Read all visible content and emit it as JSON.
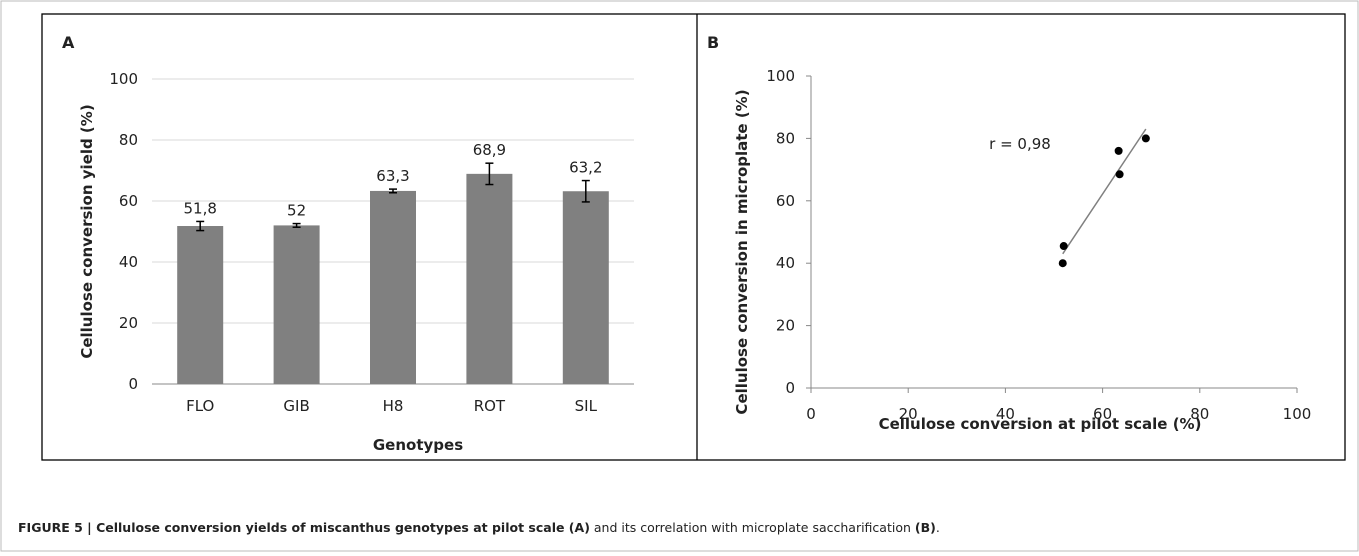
{
  "chart_data": [
    {
      "type": "bar",
      "panel": "A",
      "y_label": "Cellulose conversion yield (%)",
      "x_label": "Genotypes",
      "categories": [
        "FLO",
        "GIB",
        "H8",
        "ROT",
        "SIL"
      ],
      "values": [
        51.8,
        52,
        63.3,
        68.9,
        63.2
      ],
      "value_labels": [
        "51,8",
        "52",
        "63,3",
        "68,9",
        "63,2"
      ],
      "errors": [
        1.5,
        0.6,
        0.6,
        3.5,
        3.5
      ],
      "color": "#808080",
      "ylim": [
        0,
        100
      ],
      "yticks": [
        0,
        20,
        40,
        60,
        80,
        100
      ],
      "grid": true
    },
    {
      "type": "scatter",
      "panel": "B",
      "y_label": "Cellulose conversion in microplate (%)",
      "x_label": "Cellulose conversion at pilot scale (%)",
      "annotation": "r = 0,98",
      "x": [
        51.8,
        52,
        63.3,
        63.5,
        68.9
      ],
      "values": [
        40,
        45.5,
        76,
        68.5,
        80
      ],
      "trendline": {
        "x": [
          51.8,
          68.9
        ],
        "y": [
          43,
          83
        ]
      },
      "color": "#000000",
      "line_color": "#808080",
      "xlim": [
        0,
        100
      ],
      "xticks": [
        0,
        20,
        40,
        60,
        80,
        100
      ],
      "ylim": [
        0,
        100
      ],
      "yticks": [
        0,
        20,
        40,
        60,
        80,
        100
      ],
      "grid": false
    }
  ],
  "caption": [
    {
      "text": "FIGURE 5 | Cellulose conversion yields of miscanthus genotypes at pilot scale (A)",
      "bold": true
    },
    {
      "text": " and its correlation with microplate saccharification ",
      "bold": false
    },
    {
      "text": "(B)",
      "bold": true
    },
    {
      "text": ".",
      "bold": false
    }
  ]
}
